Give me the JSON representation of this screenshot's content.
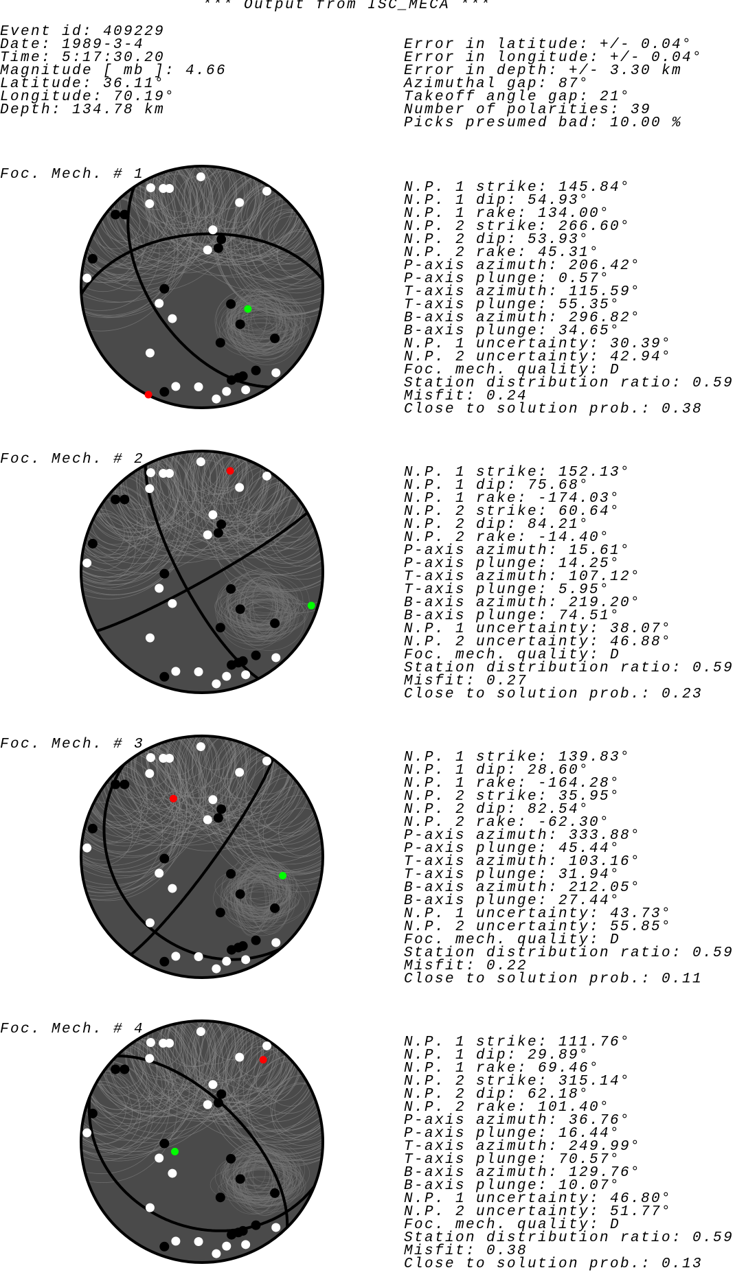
{
  "title": "*** Output from ISC_MECA ***",
  "event": [
    "Event id: 409229",
    "Date: 1989-3-4",
    "Time: 5:17:30.20",
    "Magnitude [ mb ]: 4.66",
    "Latitude: 36.11°",
    "Longitude: 70.19°",
    "Depth: 134.78 km"
  ],
  "errors": [
    "Error in latitude: +/- 0.04°",
    "Error in longitude: +/- 0.04°",
    "Error in depth: +/- 3.30 km",
    "Azimuthal gap: 87°",
    "Takeoff angle gap: 21°",
    "Number of polarities: 39",
    "Picks presumed bad: 10.00 %"
  ],
  "colors": {
    "sphere": "#4a4a4a",
    "compression": "#000000",
    "dilatation": "#ffffff",
    "p_axis": "#ff0000",
    "t_axis": "#00ff00"
  },
  "mechanisms": [
    {
      "label": "Foc. Mech. # 1",
      "np1": {
        "strike": 145.84,
        "dip": 54.93
      },
      "np2": {
        "strike": 266.6,
        "dip": 53.93
      },
      "p_axis": {
        "azimuth": 206.42,
        "plunge": 0.57
      },
      "t_axis": {
        "azimuth": 115.59,
        "plunge": 55.35
      },
      "lines": [
        "N.P. 1 strike: 145.84°",
        "N.P. 1 dip: 54.93°",
        "N.P. 1 rake: 134.00°",
        "N.P. 2 strike: 266.60°",
        "N.P. 2 dip: 53.93°",
        "N.P. 2 rake: 45.31°",
        "P-axis azimuth: 206.42°",
        "P-axis plunge: 0.57°",
        "T-axis azimuth: 115.59°",
        "T-axis plunge: 55.35°",
        "B-axis azimuth: 296.82°",
        "B-axis plunge: 34.65°",
        "N.P. 1 uncertainty: 30.39°",
        "N.P. 2 uncertainty: 42.94°",
        "Foc. mech. quality: D",
        "Station distribution ratio: 0.59",
        "Misfit: 0.24",
        "Close to solution prob.: 0.38"
      ]
    },
    {
      "label": "Foc. Mech. # 2",
      "np1": {
        "strike": 152.13,
        "dip": 75.68
      },
      "np2": {
        "strike": 60.64,
        "dip": 84.21
      },
      "p_axis": {
        "azimuth": 15.61,
        "plunge": 14.25
      },
      "t_axis": {
        "azimuth": 107.12,
        "plunge": 5.95
      },
      "lines": [
        "N.P. 1 strike: 152.13°",
        "N.P. 1 dip: 75.68°",
        "N.P. 1 rake: -174.03°",
        "N.P. 2 strike: 60.64°",
        "N.P. 2 dip: 84.21°",
        "N.P. 2 rake: -14.40°",
        "P-axis azimuth: 15.61°",
        "P-axis plunge: 14.25°",
        "T-axis azimuth: 107.12°",
        "T-axis plunge: 5.95°",
        "B-axis azimuth: 219.20°",
        "B-axis plunge: 74.51°",
        "N.P. 1 uncertainty: 38.07°",
        "N.P. 2 uncertainty: 46.88°",
        "Foc. mech. quality: D",
        "Station distribution ratio: 0.59",
        "Misfit: 0.27",
        "Close to solution prob.: 0.23"
      ]
    },
    {
      "label": "Foc. Mech. # 3",
      "np1": {
        "strike": 139.83,
        "dip": 28.6
      },
      "np2": {
        "strike": 35.95,
        "dip": 82.54
      },
      "p_axis": {
        "azimuth": 333.88,
        "plunge": 45.44
      },
      "t_axis": {
        "azimuth": 103.16,
        "plunge": 31.94
      },
      "lines": [
        "N.P. 1 strike: 139.83°",
        "N.P. 1 dip: 28.60°",
        "N.P. 1 rake: -164.28°",
        "N.P. 2 strike: 35.95°",
        "N.P. 2 dip: 82.54°",
        "N.P. 2 rake: -62.30°",
        "P-axis azimuth: 333.88°",
        "P-axis plunge: 45.44°",
        "T-axis azimuth: 103.16°",
        "T-axis plunge: 31.94°",
        "B-axis azimuth: 212.05°",
        "B-axis plunge: 27.44°",
        "N.P. 1 uncertainty: 43.73°",
        "N.P. 2 uncertainty: 55.85°",
        "Foc. mech. quality: D",
        "Station distribution ratio: 0.59",
        "Misfit: 0.22",
        "Close to solution prob.: 0.11"
      ]
    },
    {
      "label": "Foc. Mech. # 4",
      "np1": {
        "strike": 111.76,
        "dip": 29.89
      },
      "np2": {
        "strike": 315.14,
        "dip": 62.18
      },
      "p_axis": {
        "azimuth": 36.76,
        "plunge": 16.44
      },
      "t_axis": {
        "azimuth": 249.99,
        "plunge": 70.57
      },
      "lines": [
        "N.P. 1 strike: 111.76°",
        "N.P. 1 dip: 29.89°",
        "N.P. 1 rake: 69.46°",
        "N.P. 2 strike: 315.14°",
        "N.P. 2 dip: 62.18°",
        "N.P. 2 rake: 101.40°",
        "P-axis azimuth: 36.76°",
        "P-axis plunge: 16.44°",
        "T-axis azimuth: 249.99°",
        "T-axis plunge: 70.57°",
        "B-axis azimuth: 129.76°",
        "B-axis plunge: 10.07°",
        "N.P. 1 uncertainty: 46.80°",
        "N.P. 2 uncertainty: 51.77°",
        "Foc. mech. quality: D",
        "Station distribution ratio: 0.59",
        "Misfit: 0.38",
        "Close to solution prob.: 0.13"
      ]
    }
  ]
}
